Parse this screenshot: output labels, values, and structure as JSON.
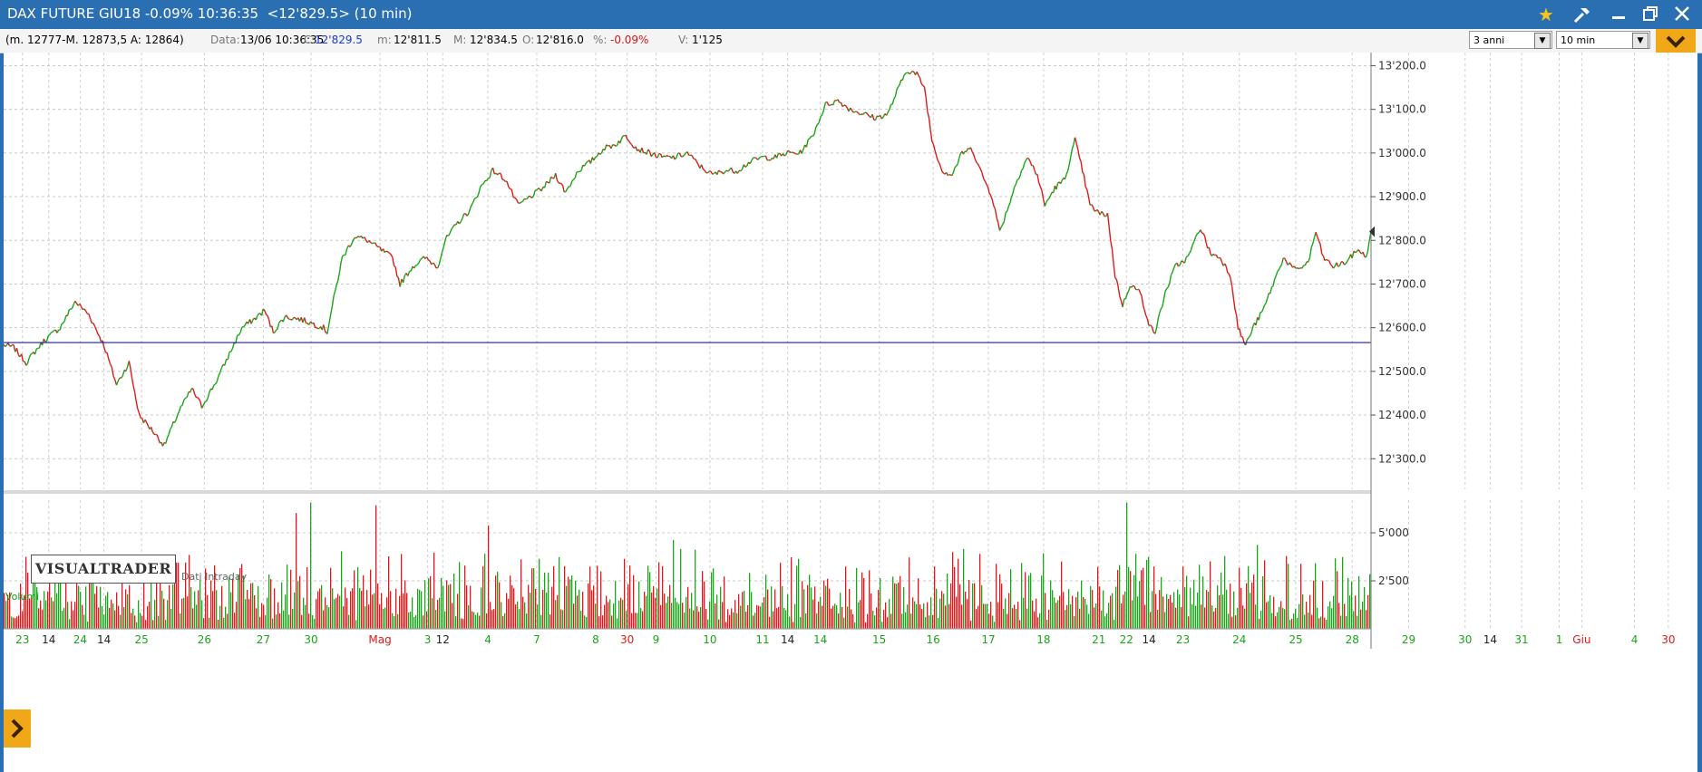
{
  "window": {
    "title": "DAX FUTURE GIU18 -0.09% 10:36:35  <12'829.5> (10 min)",
    "icons": [
      "star-icon",
      "hammer-icon",
      "minimize-icon",
      "restore-icon",
      "close-icon"
    ]
  },
  "infobar": {
    "range": "(m. 12777-M. 12873,5 A: 12864)",
    "data_label": "Data:",
    "data_value": "13/06 10:36:35",
    "close_label": "C:",
    "close_value": "12'829.5",
    "min_label": "m:",
    "min_value": "12'811.5",
    "max_label": "M:",
    "max_value": "12'834.5",
    "open_label": "O:",
    "open_value": "12'816.0",
    "pct_label": "%:",
    "pct_value": "-0.09%",
    "vol_label": "V:",
    "vol_value": "1'125",
    "period_select": "3 anni",
    "interval_select": "10 min"
  },
  "branding": {
    "logo": "VISUALTRADER",
    "data_source": "Dati Intraday",
    "volume_label": "Volumi"
  },
  "colors": {
    "up": "#1aa51a",
    "down": "#e01a1a",
    "reference_line": "#1a1ab0",
    "window": "#2b6fb3",
    "accent": "#f0a818"
  },
  "chart_data": {
    "type": "line",
    "series": [
      {
        "kind": "price",
        "anchors": [
          [
            0,
            12560
          ],
          [
            8,
            12555
          ],
          [
            18,
            12520
          ],
          [
            32,
            12570
          ],
          [
            45,
            12600
          ],
          [
            57,
            12660
          ],
          [
            68,
            12630
          ],
          [
            80,
            12560
          ],
          [
            90,
            12470
          ],
          [
            100,
            12520
          ],
          [
            108,
            12400
          ],
          [
            120,
            12360
          ],
          [
            128,
            12330
          ],
          [
            140,
            12410
          ],
          [
            150,
            12460
          ],
          [
            158,
            12420
          ],
          [
            170,
            12480
          ],
          [
            180,
            12540
          ],
          [
            190,
            12600
          ],
          [
            200,
            12620
          ],
          [
            208,
            12640
          ],
          [
            215,
            12590
          ],
          [
            224,
            12625
          ],
          [
            236,
            12620
          ],
          [
            246,
            12610
          ],
          [
            255,
            12600
          ],
          [
            258,
            12590
          ],
          [
            262,
            12650
          ],
          [
            270,
            12760
          ],
          [
            280,
            12810
          ],
          [
            290,
            12800
          ],
          [
            300,
            12780
          ],
          [
            310,
            12760
          ],
          [
            316,
            12700
          ],
          [
            326,
            12740
          ],
          [
            336,
            12760
          ],
          [
            346,
            12740
          ],
          [
            352,
            12800
          ],
          [
            362,
            12840
          ],
          [
            372,
            12870
          ],
          [
            380,
            12920
          ],
          [
            390,
            12960
          ],
          [
            400,
            12940
          ],
          [
            410,
            12880
          ],
          [
            420,
            12900
          ],
          [
            430,
            12920
          ],
          [
            440,
            12950
          ],
          [
            448,
            12910
          ],
          [
            458,
            12960
          ],
          [
            468,
            12980
          ],
          [
            478,
            13010
          ],
          [
            488,
            13020
          ],
          [
            496,
            13040
          ],
          [
            505,
            13010
          ],
          [
            515,
            13000
          ],
          [
            525,
            12990
          ],
          [
            535,
            12990
          ],
          [
            545,
            13000
          ],
          [
            555,
            12970
          ],
          [
            565,
            12950
          ],
          [
            575,
            12960
          ],
          [
            585,
            12960
          ],
          [
            595,
            12980
          ],
          [
            605,
            12990
          ],
          [
            615,
            12990
          ],
          [
            625,
            13000
          ],
          [
            635,
            13000
          ],
          [
            645,
            13040
          ],
          [
            655,
            13110
          ],
          [
            665,
            13120
          ],
          [
            675,
            13100
          ],
          [
            685,
            13090
          ],
          [
            695,
            13080
          ],
          [
            705,
            13090
          ],
          [
            712,
            13140
          ],
          [
            720,
            13190
          ],
          [
            728,
            13180
          ],
          [
            734,
            13150
          ],
          [
            740,
            13030
          ],
          [
            748,
            12960
          ],
          [
            756,
            12950
          ],
          [
            764,
            13000
          ],
          [
            772,
            13010
          ],
          [
            780,
            12950
          ],
          [
            788,
            12900
          ],
          [
            794,
            12820
          ],
          [
            800,
            12870
          ],
          [
            808,
            12940
          ],
          [
            816,
            12990
          ],
          [
            824,
            12950
          ],
          [
            830,
            12880
          ],
          [
            838,
            12920
          ],
          [
            846,
            12940
          ],
          [
            854,
            13030
          ],
          [
            860,
            12960
          ],
          [
            866,
            12880
          ],
          [
            874,
            12860
          ],
          [
            880,
            12860
          ],
          [
            886,
            12720
          ],
          [
            892,
            12650
          ],
          [
            898,
            12700
          ],
          [
            906,
            12680
          ],
          [
            914,
            12600
          ],
          [
            918,
            12590
          ],
          [
            926,
            12680
          ],
          [
            934,
            12740
          ],
          [
            944,
            12760
          ],
          [
            954,
            12830
          ],
          [
            962,
            12770
          ],
          [
            970,
            12760
          ],
          [
            978,
            12720
          ],
          [
            984,
            12600
          ],
          [
            990,
            12560
          ],
          [
            996,
            12600
          ],
          [
            1004,
            12640
          ],
          [
            1012,
            12700
          ],
          [
            1020,
            12760
          ],
          [
            1030,
            12730
          ],
          [
            1040,
            12750
          ],
          [
            1046,
            12820
          ],
          [
            1052,
            12760
          ],
          [
            1060,
            12740
          ],
          [
            1070,
            12750
          ],
          [
            1080,
            12780
          ],
          [
            1086,
            12760
          ],
          [
            1090,
            12820
          ]
        ]
      },
      {
        "kind": "volume"
      }
    ],
    "reference_line": 12566,
    "yticks": [
      "13'200.0",
      "13'100.0",
      "13'000.0",
      "12'900.0",
      "12'800.0",
      "12'700.0",
      "12'600.0",
      "12'500.0",
      "12'400.0",
      "12'300.0"
    ],
    "ytick_values": [
      13200,
      13100,
      13000,
      12900,
      12800,
      12700,
      12600,
      12500,
      12400,
      12300
    ],
    "volume_ticks": [
      "5'000",
      "2'500"
    ],
    "volume_tick_values": [
      5000,
      2500
    ],
    "volume_max": 6700,
    "xlabels": [
      {
        "t": "23",
        "c": "g",
        "x": 15
      },
      {
        "t": "14",
        "c": "k",
        "x": 36
      },
      {
        "t": "24",
        "c": "g",
        "x": 61
      },
      {
        "t": "14",
        "c": "k",
        "x": 80
      },
      {
        "t": "25",
        "c": "g",
        "x": 110
      },
      {
        "t": "26",
        "c": "g",
        "x": 160
      },
      {
        "t": "27",
        "c": "g",
        "x": 207
      },
      {
        "t": "30",
        "c": "g",
        "x": 245
      },
      {
        "t": "Mag",
        "c": "r",
        "x": 300
      },
      {
        "t": "3",
        "c": "g",
        "x": 338
      },
      {
        "t": "12",
        "c": "k",
        "x": 350
      },
      {
        "t": "4",
        "c": "g",
        "x": 386
      },
      {
        "t": "7",
        "c": "g",
        "x": 425
      },
      {
        "t": "8",
        "c": "g",
        "x": 472
      },
      {
        "t": "30",
        "c": "r",
        "x": 497
      },
      {
        "t": "9",
        "c": "g",
        "x": 520
      },
      {
        "t": "10",
        "c": "g",
        "x": 563
      },
      {
        "t": "11",
        "c": "g",
        "x": 605
      },
      {
        "t": "14",
        "c": "k",
        "x": 625
      },
      {
        "t": "14",
        "c": "g",
        "x": 651
      },
      {
        "t": "15",
        "c": "g",
        "x": 698
      },
      {
        "t": "16",
        "c": "g",
        "x": 741
      },
      {
        "t": "17",
        "c": "g",
        "x": 785
      },
      {
        "t": "18",
        "c": "g",
        "x": 829
      },
      {
        "t": "21",
        "c": "g",
        "x": 873
      },
      {
        "t": "22",
        "c": "g",
        "x": 895
      },
      {
        "t": "14",
        "c": "k",
        "x": 913
      },
      {
        "t": "23",
        "c": "g",
        "x": 940
      },
      {
        "t": "24",
        "c": "g",
        "x": 985
      },
      {
        "t": "25",
        "c": "g",
        "x": 1030
      },
      {
        "t": "28",
        "c": "g",
        "x": 1075
      },
      {
        "t": "29",
        "c": "g",
        "x": 1120
      },
      {
        "t": "30",
        "c": "g",
        "x": 1165
      },
      {
        "t": "14",
        "c": "k",
        "x": 1185
      },
      {
        "t": "31",
        "c": "g",
        "x": 1210
      },
      {
        "t": "1",
        "c": "g",
        "x": 1240
      },
      {
        "t": "Giu",
        "c": "r",
        "x": 1258
      },
      {
        "t": "4",
        "c": "g",
        "x": 1300
      },
      {
        "t": "30",
        "c": "r",
        "x": 1327
      }
    ],
    "x_range": [
      0,
      1090
    ],
    "ylim": [
      12230,
      13230
    ],
    "grid": true
  }
}
